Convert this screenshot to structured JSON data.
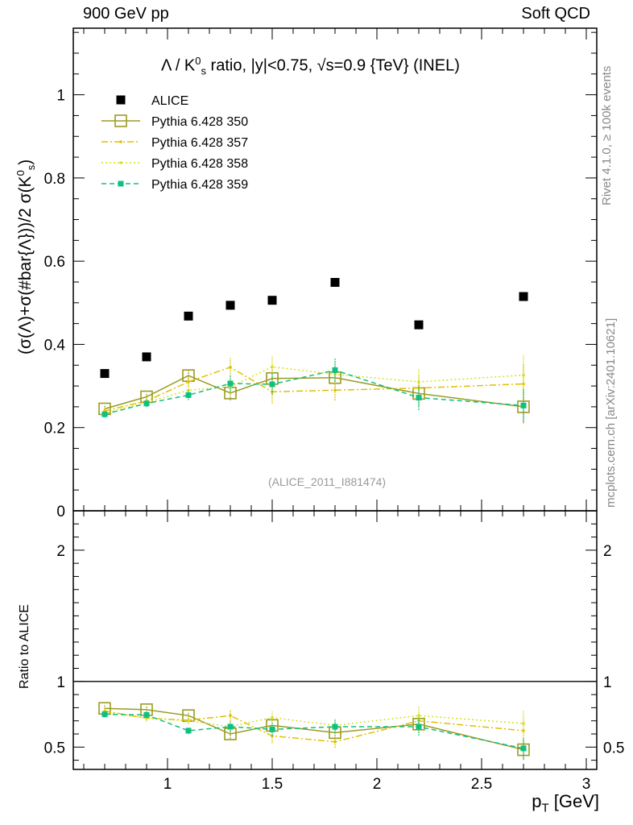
{
  "header": {
    "left": "900 GeV pp",
    "right": "Soft QCD"
  },
  "side_labels": {
    "rivet": "Rivet 4.1.0, ≥ 100k events",
    "mcplots": "mcplots.cern.ch [arXiv:2401.10621]"
  },
  "watermark": "(ALICE_2011_I881474)",
  "chart_data": {
    "type": "scatter",
    "title": "Λ / K⁰s ratio, |y|<0.75, √s=0.9 {TeV} (INEL)",
    "xlabel": "p_T [GeV]",
    "ylabel": "(σ(Λ)+σ(#bar{Λ}))/2 σ(K⁰s)",
    "ratio_ylabel": "Ratio to ALICE",
    "xlim": [
      0.55,
      3.05
    ],
    "ylim": [
      0,
      1.16
    ],
    "ratio_ylim": [
      0.33,
      2.3
    ],
    "x_ticks": [
      "1",
      "1.5",
      "2",
      "2.5",
      "3"
    ],
    "x_tick_values": [
      1,
      1.5,
      2,
      2.5,
      3
    ],
    "y_ticks": [
      "0",
      "0.2",
      "0.4",
      "0.6",
      "0.8",
      "1"
    ],
    "y_tick_values": [
      0,
      0.2,
      0.4,
      0.6,
      0.8,
      1
    ],
    "ratio_y_ticks": [
      "0.5",
      "1",
      "2"
    ],
    "ratio_y_tick_values": [
      0.5,
      1,
      2
    ],
    "x": [
      0.7,
      0.9,
      1.1,
      1.3,
      1.5,
      1.8,
      2.2,
      2.7
    ],
    "series": [
      {
        "name": "ALICE",
        "color": "#000000",
        "style": "data",
        "values": [
          0.33,
          0.37,
          0.468,
          0.494,
          0.506,
          0.549,
          0.447,
          0.515
        ],
        "errors": [
          0,
          0,
          0,
          0,
          0,
          0,
          0,
          0
        ]
      },
      {
        "name": "Pythia 6.428 350",
        "color": "#9b9b22",
        "style": "solid-square-open",
        "values": [
          0.245,
          0.274,
          0.325,
          0.283,
          0.318,
          0.32,
          0.282,
          0.25
        ],
        "errors": [
          0.008,
          0.009,
          0.013,
          0.018,
          0.022,
          0.025,
          0.03,
          0.04
        ],
        "ratio": [
          0.795,
          0.785,
          0.74,
          0.6,
          0.665,
          0.61,
          0.675,
          0.48
        ]
      },
      {
        "name": "Pythia 6.428 357",
        "color": "#e0c000",
        "style": "dashdot",
        "values": [
          0.24,
          0.264,
          0.31,
          0.345,
          0.286,
          0.29,
          0.295,
          0.305
        ],
        "errors": [
          0.008,
          0.009,
          0.013,
          0.022,
          0.028,
          0.025,
          0.03,
          0.05
        ],
        "ratio": [
          0.775,
          0.72,
          0.705,
          0.74,
          0.585,
          0.54,
          0.7,
          0.625
        ]
      },
      {
        "name": "Pythia 6.428 358",
        "color": "#d8e020",
        "style": "dotted",
        "values": [
          0.235,
          0.26,
          0.29,
          0.298,
          0.346,
          0.328,
          0.31,
          0.326
        ],
        "errors": [
          0.008,
          0.009,
          0.012,
          0.02,
          0.025,
          0.028,
          0.032,
          0.05
        ],
        "ratio": [
          0.765,
          0.72,
          0.7,
          0.655,
          0.725,
          0.665,
          0.74,
          0.68
        ]
      },
      {
        "name": "Pythia 6.428 359",
        "color": "#10c080",
        "style": "dashed-square-filled",
        "values": [
          0.232,
          0.258,
          0.278,
          0.306,
          0.304,
          0.338,
          0.272,
          0.253
        ],
        "errors": [
          0.008,
          0.009,
          0.012,
          0.02,
          0.025,
          0.028,
          0.03,
          0.04
        ],
        "ratio": [
          0.75,
          0.745,
          0.625,
          0.655,
          0.635,
          0.655,
          0.655,
          0.49
        ]
      }
    ]
  }
}
